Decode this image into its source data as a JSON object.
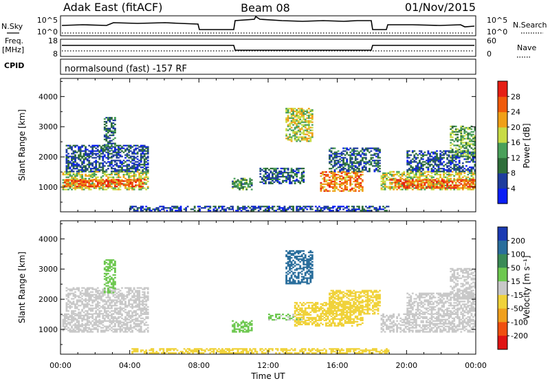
{
  "header": {
    "station": "Adak East (fitACF)",
    "beam": "Beam 08",
    "date": "01/Nov/2015"
  },
  "status_panel": {
    "nsky_label": "N.Sky",
    "nsearch_label": "N.Search",
    "freq_label_1": "Freq.",
    "freq_label_2": "[MHz]",
    "nave_label": "Nave",
    "cpid_label": "CPID",
    "cpid_text": "normalsound (fast) -157 RF",
    "noise_ticks": [
      "10^5",
      "10^0"
    ],
    "freq_ticks": [
      "18",
      "8"
    ],
    "nave_ticks": [
      "60",
      "0"
    ]
  },
  "colors": {
    "power_scale": [
      "#0a1ef5",
      "#1e3c9e",
      "#2e6e3a",
      "#4aa05a",
      "#c8dc46",
      "#f0a018",
      "#f05a0a",
      "#e61e14"
    ],
    "velocity_scale": [
      "#1b3ab2",
      "#2a6e9c",
      "#3a8a56",
      "#6ec850",
      "#c8c8c8",
      "#f0d23a",
      "#f0a01e",
      "#f05010",
      "#e01414"
    ]
  },
  "chart_data": [
    {
      "type": "heatmap",
      "title": "",
      "xlabel": "Time UT",
      "ylabel": "Slant Range [km]",
      "xticks": [
        "00:00",
        "04:00",
        "08:00",
        "12:00",
        "16:00",
        "20:00",
        "00:00"
      ],
      "xlim_hours": [
        0,
        24
      ],
      "ylim_km": [
        180,
        4600
      ],
      "yticks": [
        "1000",
        "2000",
        "3000",
        "4000"
      ],
      "colorbar": {
        "label": "Power [dB]",
        "ticks": [
          "4",
          "8",
          "12",
          "16",
          "20",
          "24",
          "28"
        ],
        "range": [
          0,
          32
        ]
      },
      "regions": [
        {
          "t": [
            0.1,
            5.0
          ],
          "r": [
            900,
            1500
          ],
          "v": 18
        },
        {
          "t": [
            0.2,
            4.8
          ],
          "r": [
            1000,
            1250
          ],
          "v": 26
        },
        {
          "t": [
            0.3,
            5.0
          ],
          "r": [
            1500,
            2400
          ],
          "v": 7
        },
        {
          "t": [
            2.5,
            3.2
          ],
          "r": [
            2200,
            3300
          ],
          "v": 10
        },
        {
          "t": [
            4.0,
            19.0
          ],
          "r": [
            200,
            380
          ],
          "v": 6
        },
        {
          "t": [
            9.9,
            11.0
          ],
          "r": [
            900,
            1300
          ],
          "v": 12
        },
        {
          "t": [
            11.5,
            14.0
          ],
          "r": [
            1100,
            1600
          ],
          "v": 8
        },
        {
          "t": [
            13.0,
            14.5
          ],
          "r": [
            2500,
            3600
          ],
          "v": 18
        },
        {
          "t": [
            15.0,
            17.5
          ],
          "r": [
            850,
            1500
          ],
          "v": 24
        },
        {
          "t": [
            15.5,
            18.5
          ],
          "r": [
            1500,
            2300
          ],
          "v": 8
        },
        {
          "t": [
            18.5,
            24.0
          ],
          "r": [
            900,
            1500
          ],
          "v": 18
        },
        {
          "t": [
            19.0,
            24.0
          ],
          "r": [
            950,
            1250
          ],
          "v": 27
        },
        {
          "t": [
            20.0,
            24.0
          ],
          "r": [
            1500,
            2200
          ],
          "v": 7
        },
        {
          "t": [
            22.5,
            24.0
          ],
          "r": [
            2000,
            3000
          ],
          "v": 14
        }
      ]
    },
    {
      "type": "heatmap",
      "title": "",
      "xlabel": "Time UT",
      "ylabel": "Slant Range [km]",
      "xticks": [
        "00:00",
        "04:00",
        "08:00",
        "12:00",
        "16:00",
        "20:00",
        "00:00"
      ],
      "xlim_hours": [
        0,
        24
      ],
      "ylim_km": [
        180,
        4600
      ],
      "yticks": [
        "1000",
        "2000",
        "3000",
        "4000"
      ],
      "colorbar": {
        "label": "Velocity [m s⁻¹]",
        "ticks": [
          "200",
          "100",
          "50",
          "15",
          "-15",
          "-50",
          "-100",
          "-200"
        ],
        "range": [
          -250,
          250
        ]
      },
      "regions": [
        {
          "t": [
            0.1,
            5.0
          ],
          "r": [
            900,
            1500
          ],
          "v": 0
        },
        {
          "t": [
            0.3,
            5.0
          ],
          "r": [
            1500,
            2400
          ],
          "v": 0
        },
        {
          "t": [
            2.5,
            3.2
          ],
          "r": [
            2200,
            3300
          ],
          "v": 60
        },
        {
          "t": [
            4.0,
            19.0
          ],
          "r": [
            200,
            380
          ],
          "v": -40
        },
        {
          "t": [
            9.9,
            11.0
          ],
          "r": [
            900,
            1300
          ],
          "v": 40
        },
        {
          "t": [
            12.0,
            14.0
          ],
          "r": [
            1300,
            1500
          ],
          "v": 30
        },
        {
          "t": [
            13.5,
            17.5
          ],
          "r": [
            1100,
            1900
          ],
          "v": -55
        },
        {
          "t": [
            15.5,
            18.5
          ],
          "r": [
            1500,
            2300
          ],
          "v": -40
        },
        {
          "t": [
            13.0,
            14.5
          ],
          "r": [
            2500,
            3600
          ],
          "v": 150
        },
        {
          "t": [
            18.5,
            24.0
          ],
          "r": [
            900,
            1500
          ],
          "v": 0
        },
        {
          "t": [
            20.0,
            24.0
          ],
          "r": [
            1500,
            2200
          ],
          "v": 0
        },
        {
          "t": [
            22.5,
            24.0
          ],
          "r": [
            2000,
            3000
          ],
          "v": 0
        }
      ]
    }
  ]
}
